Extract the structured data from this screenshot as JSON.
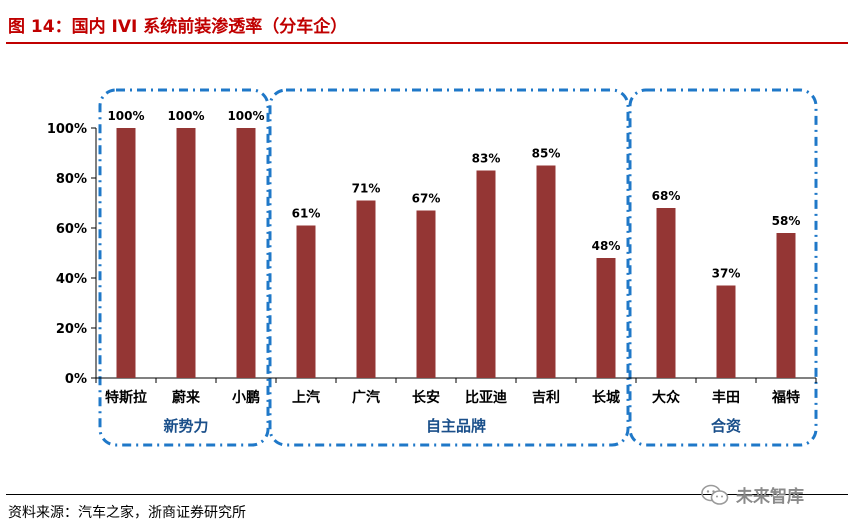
{
  "header": {
    "title": "图 14：国内 IVI 系统前装渗透率（分车企）"
  },
  "footer": {
    "source": "资料来源：汽车之家，浙商证券研究所"
  },
  "watermark": {
    "text": "未来智库",
    "icon": "wechat-icon"
  },
  "colors": {
    "bar": "#943634",
    "group_border": "#1f78c8",
    "title": "#c00000"
  },
  "chart_data": {
    "type": "bar",
    "categories": [
      "特斯拉",
      "蔚来",
      "小鹏",
      "上汽",
      "广汽",
      "长安",
      "比亚迪",
      "吉利",
      "长城",
      "大众",
      "丰田",
      "福特"
    ],
    "values": [
      100,
      100,
      100,
      61,
      71,
      67,
      83,
      85,
      48,
      68,
      37,
      58
    ],
    "data_labels": [
      "100%",
      "100%",
      "100%",
      "61%",
      "71%",
      "67%",
      "83%",
      "85%",
      "48%",
      "68%",
      "37%",
      "58%"
    ],
    "ylim": [
      0,
      100
    ],
    "yticks": [
      0,
      20,
      40,
      60,
      80,
      100
    ],
    "ytick_labels": [
      "0%",
      "20%",
      "40%",
      "60%",
      "80%",
      "100%"
    ],
    "grid": false,
    "legend": "none",
    "groups": [
      {
        "label": "新势力",
        "start": 0,
        "end": 2
      },
      {
        "label": "自主品牌",
        "start": 3,
        "end": 8
      },
      {
        "label": "合资",
        "start": 9,
        "end": 11
      }
    ]
  }
}
